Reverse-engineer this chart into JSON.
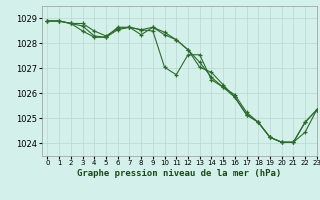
{
  "title": "Graphe pression niveau de la mer (hPa)",
  "bg_color": "#d4f0eb",
  "grid_color": "#b8d8d2",
  "line_color": "#2d6b2d",
  "marker_color": "#2d6b2d",
  "xlim": [
    -0.5,
    23
  ],
  "ylim": [
    1023.5,
    1029.5
  ],
  "yticks": [
    1024,
    1025,
    1026,
    1027,
    1028,
    1029
  ],
  "xticks": [
    0,
    1,
    2,
    3,
    4,
    5,
    6,
    7,
    8,
    9,
    10,
    11,
    12,
    13,
    14,
    15,
    16,
    17,
    18,
    19,
    20,
    21,
    22,
    23
  ],
  "series1": [
    1028.9,
    1028.9,
    1028.8,
    1028.8,
    1028.5,
    1028.3,
    1028.6,
    1028.65,
    1028.55,
    1028.5,
    1027.05,
    1026.75,
    1027.55,
    1027.55,
    1026.55,
    1026.25,
    1025.95,
    1025.25,
    1024.85,
    1024.25,
    1024.05,
    1024.05,
    1024.85,
    1025.35
  ],
  "series2": [
    1028.9,
    1028.9,
    1028.8,
    1028.7,
    1028.3,
    1028.25,
    1028.55,
    1028.65,
    1028.55,
    1028.65,
    1028.45,
    1028.15,
    1027.75,
    1027.05,
    1026.85,
    1026.35,
    1025.85,
    1025.15,
    1024.85,
    1024.25,
    1024.05,
    1024.05,
    1024.85,
    1025.35
  ],
  "series3": [
    1028.9,
    1028.9,
    1028.8,
    1028.5,
    1028.25,
    1028.25,
    1028.65,
    1028.65,
    1028.35,
    1028.65,
    1028.35,
    1028.15,
    1027.75,
    1027.25,
    1026.65,
    1026.25,
    1025.85,
    1025.15,
    1024.85,
    1024.25,
    1024.05,
    1024.05,
    1024.45,
    1025.35
  ]
}
